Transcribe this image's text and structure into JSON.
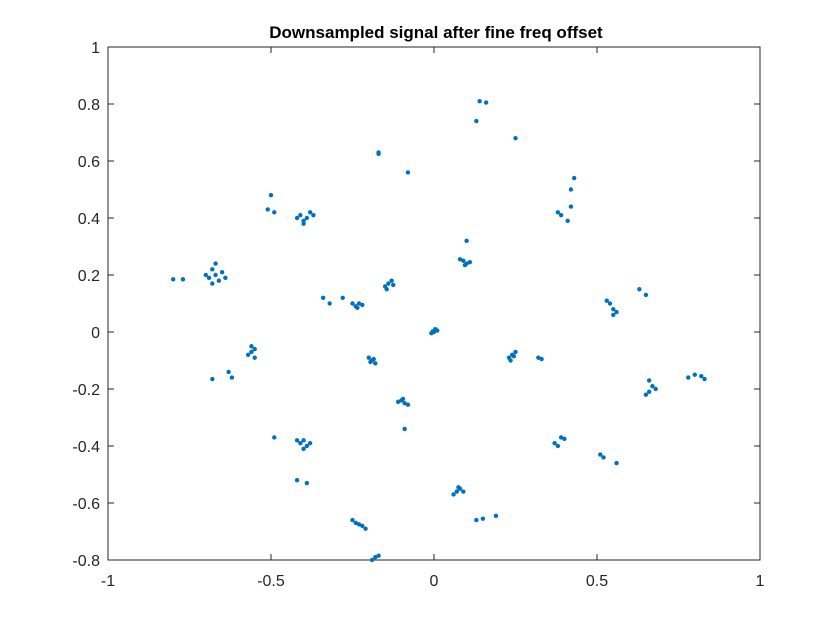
{
  "chart_data": {
    "type": "scatter",
    "title": "Downsampled signal after fine freq offset",
    "xlabel": "",
    "ylabel": "",
    "xlim": [
      -1,
      1
    ],
    "ylim": [
      -0.8,
      1
    ],
    "x_ticks": [
      -1,
      -0.5,
      0,
      0.5,
      1
    ],
    "y_ticks": [
      -0.8,
      -0.6,
      -0.4,
      -0.2,
      0,
      0.2,
      0.4,
      0.6,
      0.8,
      1
    ],
    "x_tick_labels": [
      "-1",
      "-0.5",
      "0",
      "0.5",
      "1"
    ],
    "y_tick_labels": [
      "-0.8",
      "-0.6",
      "-0.4",
      "-0.2",
      "0",
      "0.2",
      "0.4",
      "0.6",
      "0.8",
      "1"
    ],
    "grid": false,
    "marker_color": "#0072BD",
    "series": [
      {
        "points": [
          [
            0.0,
            0.0
          ],
          [
            0.01,
            0.005
          ],
          [
            -0.008,
            -0.004
          ],
          [
            0.004,
            0.01
          ],
          [
            -0.004,
            0.002
          ],
          [
            -0.19,
            -0.1
          ],
          [
            -0.2,
            -0.09
          ],
          [
            -0.18,
            -0.11
          ],
          [
            -0.195,
            -0.105
          ],
          [
            -0.185,
            -0.095
          ],
          [
            -0.23,
            0.1
          ],
          [
            -0.24,
            0.09
          ],
          [
            -0.25,
            0.1
          ],
          [
            -0.22,
            0.095
          ],
          [
            -0.235,
            0.085
          ],
          [
            -0.14,
            0.17
          ],
          [
            -0.15,
            0.16
          ],
          [
            -0.13,
            0.18
          ],
          [
            -0.145,
            0.15
          ],
          [
            -0.125,
            0.165
          ],
          [
            -0.1,
            -0.24
          ],
          [
            -0.09,
            -0.25
          ],
          [
            -0.11,
            -0.245
          ],
          [
            -0.08,
            -0.255
          ],
          [
            -0.095,
            -0.235
          ],
          [
            0.09,
            0.25
          ],
          [
            0.1,
            0.24
          ],
          [
            0.08,
            0.255
          ],
          [
            0.11,
            0.245
          ],
          [
            0.095,
            0.235
          ],
          [
            0.24,
            -0.08
          ],
          [
            0.23,
            -0.09
          ],
          [
            0.25,
            -0.07
          ],
          [
            0.235,
            -0.1
          ],
          [
            0.245,
            -0.085
          ],
          [
            0.07,
            -0.56
          ],
          [
            0.08,
            -0.55
          ],
          [
            0.06,
            -0.57
          ],
          [
            0.09,
            -0.56
          ],
          [
            0.075,
            -0.545
          ],
          [
            -0.4,
            0.39
          ],
          [
            -0.41,
            0.41
          ],
          [
            -0.39,
            0.4
          ],
          [
            -0.38,
            0.42
          ],
          [
            -0.4,
            0.38
          ],
          [
            -0.42,
            0.4
          ],
          [
            -0.37,
            0.41
          ],
          [
            -0.67,
            0.2
          ],
          [
            -0.68,
            0.22
          ],
          [
            -0.66,
            0.18
          ],
          [
            -0.69,
            0.19
          ],
          [
            -0.65,
            0.21
          ],
          [
            -0.67,
            0.24
          ],
          [
            -0.7,
            0.2
          ],
          [
            -0.64,
            0.19
          ],
          [
            -0.68,
            0.17
          ],
          [
            -0.56,
            -0.07
          ],
          [
            -0.55,
            -0.06
          ],
          [
            -0.57,
            -0.08
          ],
          [
            -0.55,
            -0.09
          ],
          [
            -0.56,
            -0.05
          ],
          [
            -0.4,
            -0.38
          ],
          [
            -0.41,
            -0.39
          ],
          [
            -0.39,
            -0.4
          ],
          [
            -0.38,
            -0.39
          ],
          [
            -0.42,
            -0.38
          ],
          [
            -0.4,
            -0.41
          ],
          [
            -0.24,
            -0.67
          ],
          [
            -0.25,
            -0.66
          ],
          [
            -0.23,
            -0.675
          ],
          [
            -0.22,
            -0.68
          ],
          [
            -0.21,
            -0.69
          ],
          [
            0.54,
            0.1
          ],
          [
            0.55,
            0.08
          ],
          [
            0.55,
            0.06
          ],
          [
            0.53,
            0.11
          ],
          [
            0.56,
            0.07
          ],
          [
            0.66,
            -0.21
          ],
          [
            0.67,
            -0.19
          ],
          [
            0.65,
            -0.22
          ],
          [
            0.68,
            -0.2
          ],
          [
            0.66,
            -0.17
          ],
          [
            0.39,
            0.41
          ],
          [
            0.41,
            0.39
          ],
          [
            0.42,
            0.44
          ],
          [
            0.42,
            0.5
          ],
          [
            0.43,
            0.54
          ],
          [
            0.38,
            0.42
          ],
          [
            0.14,
            0.81
          ],
          [
            0.16,
            0.805
          ],
          [
            0.13,
            0.74
          ],
          [
            0.25,
            0.68
          ],
          [
            -0.17,
            0.63
          ],
          [
            -0.17,
            0.625
          ],
          [
            -0.08,
            0.56
          ],
          [
            -0.51,
            0.43
          ],
          [
            -0.49,
            0.42
          ],
          [
            -0.5,
            0.48
          ],
          [
            -0.8,
            0.185
          ],
          [
            -0.77,
            0.185
          ],
          [
            -0.34,
            0.12
          ],
          [
            -0.32,
            0.1
          ],
          [
            -0.28,
            0.12
          ],
          [
            0.1,
            0.32
          ],
          [
            -0.68,
            -0.165
          ],
          [
            -0.63,
            -0.14
          ],
          [
            -0.62,
            -0.16
          ],
          [
            -0.49,
            -0.37
          ],
          [
            -0.42,
            -0.52
          ],
          [
            -0.39,
            -0.53
          ],
          [
            -0.18,
            -0.79
          ],
          [
            -0.19,
            -0.8
          ],
          [
            -0.17,
            -0.785
          ],
          [
            -0.09,
            -0.34
          ],
          [
            0.32,
            -0.09
          ],
          [
            0.33,
            -0.095
          ],
          [
            0.37,
            -0.39
          ],
          [
            0.38,
            -0.4
          ],
          [
            0.39,
            -0.37
          ],
          [
            0.4,
            -0.375
          ],
          [
            0.51,
            -0.43
          ],
          [
            0.52,
            -0.44
          ],
          [
            0.56,
            -0.46
          ],
          [
            0.13,
            -0.66
          ],
          [
            0.15,
            -0.655
          ],
          [
            0.19,
            -0.645
          ],
          [
            0.63,
            0.15
          ],
          [
            0.65,
            0.13
          ],
          [
            0.78,
            -0.16
          ],
          [
            0.8,
            -0.15
          ],
          [
            0.82,
            -0.155
          ],
          [
            0.83,
            -0.165
          ]
        ]
      }
    ]
  }
}
